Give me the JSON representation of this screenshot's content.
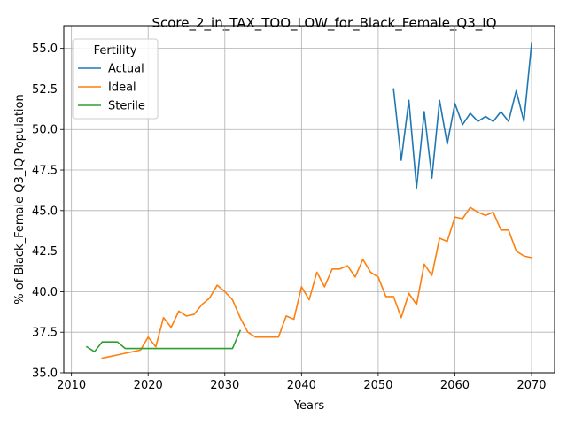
{
  "chart_data": {
    "type": "line",
    "title": "Score_2_in_TAX_TOO_LOW_for_Black_Female_Q3_IQ",
    "xlabel": "Years",
    "ylabel": "% of Black_Female Q3_IQ Population",
    "xlim": [
      2009,
      2073
    ],
    "ylim": [
      35.0,
      56.4
    ],
    "xticks": [
      2010,
      2020,
      2030,
      2040,
      2050,
      2060,
      2070
    ],
    "yticks": [
      35.0,
      37.5,
      40.0,
      42.5,
      45.0,
      47.5,
      50.0,
      52.5,
      55.0
    ],
    "grid": true,
    "legend": {
      "title": "Fertility",
      "placement": "top-left"
    },
    "series": [
      {
        "name": "Actual",
        "color": "#1f77b4",
        "x": [
          2052,
          2053,
          2054,
          2055,
          2056,
          2057,
          2058,
          2059,
          2060,
          2061,
          2062,
          2063,
          2064,
          2065,
          2066,
          2067,
          2068,
          2069,
          2070
        ],
        "y": [
          52.5,
          48.1,
          51.8,
          46.4,
          51.1,
          47.0,
          51.8,
          49.1,
          51.6,
          50.3,
          51.0,
          50.5,
          50.8,
          50.5,
          51.1,
          50.5,
          52.4,
          50.5,
          55.3
        ]
      },
      {
        "name": "Ideal",
        "color": "#ff7f0e",
        "x": [
          2014,
          2015,
          2016,
          2017,
          2018,
          2019,
          2020,
          2021,
          2022,
          2023,
          2024,
          2025,
          2026,
          2027,
          2028,
          2029,
          2030,
          2031,
          2032,
          2033,
          2034,
          2035,
          2036,
          2037,
          2038,
          2039,
          2040,
          2041,
          2042,
          2043,
          2044,
          2045,
          2046,
          2047,
          2048,
          2049,
          2050,
          2051,
          2052,
          2053,
          2054,
          2055,
          2056,
          2057,
          2058,
          2059,
          2060,
          2061,
          2062,
          2063,
          2064,
          2065,
          2066,
          2067,
          2068,
          2069,
          2070
        ],
        "y": [
          35.9,
          36.0,
          36.1,
          36.2,
          36.3,
          36.4,
          37.2,
          36.6,
          38.4,
          37.8,
          38.8,
          38.5,
          38.6,
          39.2,
          39.6,
          40.4,
          40.0,
          39.5,
          38.4,
          37.5,
          37.2,
          37.2,
          37.2,
          37.2,
          38.5,
          38.3,
          40.3,
          39.5,
          41.2,
          40.3,
          41.4,
          41.4,
          41.6,
          40.9,
          42.0,
          41.2,
          40.9,
          39.7,
          39.7,
          38.4,
          39.9,
          39.2,
          41.7,
          41.0,
          43.3,
          43.1,
          44.6,
          44.5,
          45.2,
          44.9,
          44.7,
          44.9,
          43.8,
          43.8,
          42.5,
          42.2,
          42.1
        ]
      },
      {
        "name": "Sterile",
        "color": "#2ca02c",
        "x": [
          2012,
          2013,
          2014,
          2015,
          2016,
          2017,
          2018,
          2019,
          2020,
          2021,
          2022,
          2023,
          2024,
          2025,
          2026,
          2027,
          2028,
          2029,
          2030,
          2031,
          2032
        ],
        "y": [
          36.6,
          36.3,
          36.9,
          36.9,
          36.9,
          36.5,
          36.5,
          36.5,
          36.5,
          36.5,
          36.5,
          36.5,
          36.5,
          36.5,
          36.5,
          36.5,
          36.5,
          36.5,
          36.5,
          36.5,
          37.6
        ]
      }
    ]
  }
}
